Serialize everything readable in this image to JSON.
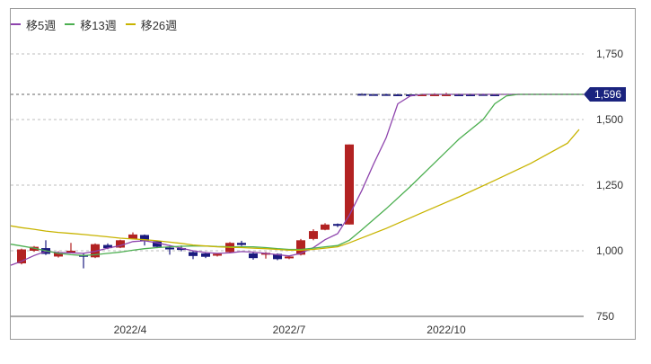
{
  "legend": {
    "items": [
      {
        "label": "移5週",
        "color": "#8e44ad"
      },
      {
        "label": "移13週",
        "color": "#4caf50"
      },
      {
        "label": "移26週",
        "color": "#c8b400"
      }
    ]
  },
  "current_price_badge": {
    "label": "1,596",
    "color": "#1a237e"
  },
  "chart_data": {
    "type": "candlestick",
    "title": "",
    "xlabel": "",
    "ylabel": "",
    "ylim": [
      750,
      1850
    ],
    "grid": true,
    "legend_position": "top-left",
    "y_ticks": [
      {
        "value": 1750,
        "label": "1,750"
      },
      {
        "value": 1500,
        "label": "1,500"
      },
      {
        "value": 1250,
        "label": "1,250"
      },
      {
        "value": 1000,
        "label": "1,000"
      },
      {
        "value": 750,
        "label": "750"
      }
    ],
    "x_ticks": [
      {
        "label": "2022/4",
        "x": 145
      },
      {
        "label": "2022/7",
        "x": 322
      },
      {
        "label": "2022/10",
        "x": 497
      }
    ],
    "current_price": 1596,
    "candles": [
      {
        "x": 24,
        "open": 952,
        "close": 1005,
        "high": 1008,
        "low": 948,
        "up": true
      },
      {
        "x": 38,
        "open": 1000,
        "close": 1015,
        "high": 1018,
        "low": 996,
        "up": true
      },
      {
        "x": 51,
        "open": 1010,
        "close": 988,
        "high": 1040,
        "low": 984,
        "up": false
      },
      {
        "x": 65,
        "open": 978,
        "close": 994,
        "high": 998,
        "low": 974,
        "up": true
      },
      {
        "x": 79,
        "open": 995,
        "close": 1000,
        "high": 1030,
        "low": 992,
        "up": true
      },
      {
        "x": 93,
        "open": 984,
        "close": 981,
        "high": 990,
        "low": 933,
        "up": false
      },
      {
        "x": 106,
        "open": 975,
        "close": 1025,
        "high": 1028,
        "low": 972,
        "up": true
      },
      {
        "x": 120,
        "open": 1022,
        "close": 1010,
        "high": 1028,
        "low": 1006,
        "up": false
      },
      {
        "x": 134,
        "open": 1012,
        "close": 1040,
        "high": 1042,
        "low": 1010,
        "up": true
      },
      {
        "x": 148,
        "open": 1045,
        "close": 1062,
        "high": 1070,
        "low": 1043,
        "up": true
      },
      {
        "x": 161,
        "open": 1060,
        "close": 1038,
        "high": 1062,
        "low": 1020,
        "up": false
      },
      {
        "x": 175,
        "open": 1036,
        "close": 1015,
        "high": 1038,
        "low": 1010,
        "up": false
      },
      {
        "x": 189,
        "open": 1012,
        "close": 1010,
        "high": 1022,
        "low": 985,
        "up": false
      },
      {
        "x": 202,
        "open": 1010,
        "close": 1008,
        "high": 1020,
        "low": 998,
        "up": false
      },
      {
        "x": 215,
        "open": 995,
        "close": 980,
        "high": 998,
        "low": 968,
        "up": false
      },
      {
        "x": 229,
        "open": 990,
        "close": 977,
        "high": 992,
        "low": 972,
        "up": false
      },
      {
        "x": 242,
        "open": 982,
        "close": 988,
        "high": 990,
        "low": 978,
        "up": true
      },
      {
        "x": 256,
        "open": 995,
        "close": 1030,
        "high": 1033,
        "low": 993,
        "up": true
      },
      {
        "x": 269,
        "open": 1030,
        "close": 1022,
        "high": 1038,
        "low": 1018,
        "up": false
      },
      {
        "x": 282,
        "open": 990,
        "close": 972,
        "high": 995,
        "low": 966,
        "up": false
      },
      {
        "x": 296,
        "open": 985,
        "close": 992,
        "high": 995,
        "low": 970,
        "up": true
      },
      {
        "x": 309,
        "open": 988,
        "close": 968,
        "high": 990,
        "low": 964,
        "up": false
      },
      {
        "x": 322,
        "open": 972,
        "close": 978,
        "high": 982,
        "low": 968,
        "up": true
      },
      {
        "x": 335,
        "open": 985,
        "close": 1040,
        "high": 1045,
        "low": 982,
        "up": true
      },
      {
        "x": 349,
        "open": 1045,
        "close": 1075,
        "high": 1082,
        "low": 1040,
        "up": true
      },
      {
        "x": 362,
        "open": 1080,
        "close": 1100,
        "high": 1105,
        "low": 1078,
        "up": true
      },
      {
        "x": 376,
        "open": 1102,
        "close": 1098,
        "high": 1104,
        "low": 1090,
        "up": false
      },
      {
        "x": 389,
        "open": 1100,
        "close": 1405,
        "high": 1405,
        "low": 1100,
        "up": true
      },
      {
        "x": 403,
        "open": 1598,
        "close": 1596,
        "high": 1600,
        "low": 1594,
        "up": false
      },
      {
        "x": 416,
        "open": 1597,
        "close": 1596,
        "high": 1598,
        "low": 1595,
        "up": false
      },
      {
        "x": 430,
        "open": 1597,
        "close": 1596,
        "high": 1598,
        "low": 1595,
        "up": false
      },
      {
        "x": 443,
        "open": 1596,
        "close": 1596,
        "high": 1598,
        "low": 1594,
        "up": false
      },
      {
        "x": 457,
        "open": 1596,
        "close": 1595,
        "high": 1597,
        "low": 1594,
        "up": false
      },
      {
        "x": 470,
        "open": 1595,
        "close": 1596,
        "high": 1597,
        "low": 1593,
        "up": true
      },
      {
        "x": 484,
        "open": 1596,
        "close": 1596,
        "high": 1600,
        "low": 1594,
        "up": true
      },
      {
        "x": 497,
        "open": 1596,
        "close": 1596,
        "high": 1602,
        "low": 1594,
        "up": true
      },
      {
        "x": 511,
        "open": 1596,
        "close": 1596,
        "high": 1598,
        "low": 1595,
        "up": false
      },
      {
        "x": 524,
        "open": 1596,
        "close": 1596,
        "high": 1598,
        "low": 1595,
        "up": false
      },
      {
        "x": 538,
        "open": 1597,
        "close": 1596,
        "high": 1598,
        "low": 1595,
        "up": false
      },
      {
        "x": 551,
        "open": 1596,
        "close": 1596,
        "high": 1597,
        "low": 1595,
        "up": false
      }
    ],
    "series": [
      {
        "name": "移5週",
        "color": "#8e44ad",
        "points": [
          [
            12,
            945
          ],
          [
            24,
            960
          ],
          [
            38,
            982
          ],
          [
            51,
            998
          ],
          [
            65,
            993
          ],
          [
            79,
            992
          ],
          [
            93,
            990
          ],
          [
            106,
            998
          ],
          [
            120,
            1010
          ],
          [
            134,
            1020
          ],
          [
            148,
            1035
          ],
          [
            161,
            1038
          ],
          [
            175,
            1030
          ],
          [
            189,
            1020
          ],
          [
            202,
            1010
          ],
          [
            215,
            1000
          ],
          [
            229,
            993
          ],
          [
            242,
            990
          ],
          [
            256,
            992
          ],
          [
            269,
            997
          ],
          [
            282,
            995
          ],
          [
            296,
            990
          ],
          [
            309,
            985
          ],
          [
            322,
            980
          ],
          [
            335,
            990
          ],
          [
            349,
            1012
          ],
          [
            362,
            1042
          ],
          [
            376,
            1065
          ],
          [
            389,
            1135
          ],
          [
            403,
            1230
          ],
          [
            416,
            1330
          ],
          [
            430,
            1430
          ],
          [
            443,
            1560
          ],
          [
            457,
            1590
          ],
          [
            470,
            1596
          ],
          [
            650,
            1596
          ]
        ]
      },
      {
        "name": "移13週",
        "color": "#4caf50",
        "points": [
          [
            12,
            1025
          ],
          [
            24,
            1018
          ],
          [
            38,
            1010
          ],
          [
            51,
            1000
          ],
          [
            65,
            990
          ],
          [
            79,
            985
          ],
          [
            93,
            982
          ],
          [
            106,
            985
          ],
          [
            120,
            990
          ],
          [
            134,
            995
          ],
          [
            148,
            1002
          ],
          [
            161,
            1008
          ],
          [
            175,
            1012
          ],
          [
            189,
            1015
          ],
          [
            202,
            1017
          ],
          [
            215,
            1018
          ],
          [
            229,
            1018
          ],
          [
            242,
            1016
          ],
          [
            256,
            1015
          ],
          [
            269,
            1015
          ],
          [
            282,
            1015
          ],
          [
            296,
            1012
          ],
          [
            309,
            1008
          ],
          [
            322,
            1005
          ],
          [
            335,
            1005
          ],
          [
            349,
            1010
          ],
          [
            362,
            1015
          ],
          [
            376,
            1020
          ],
          [
            389,
            1040
          ],
          [
            403,
            1080
          ],
          [
            430,
            1160
          ],
          [
            457,
            1245
          ],
          [
            484,
            1335
          ],
          [
            511,
            1425
          ],
          [
            538,
            1500
          ],
          [
            551,
            1560
          ],
          [
            564,
            1590
          ],
          [
            577,
            1596
          ],
          [
            650,
            1596
          ]
        ]
      },
      {
        "name": "移26週",
        "color": "#c8b400",
        "points": [
          [
            12,
            1095
          ],
          [
            24,
            1088
          ],
          [
            38,
            1082
          ],
          [
            51,
            1075
          ],
          [
            65,
            1070
          ],
          [
            79,
            1066
          ],
          [
            93,
            1062
          ],
          [
            106,
            1058
          ],
          [
            120,
            1053
          ],
          [
            134,
            1048
          ],
          [
            148,
            1045
          ],
          [
            161,
            1042
          ],
          [
            175,
            1038
          ],
          [
            189,
            1033
          ],
          [
            202,
            1028
          ],
          [
            215,
            1022
          ],
          [
            229,
            1018
          ],
          [
            242,
            1015
          ],
          [
            256,
            1013
          ],
          [
            269,
            1012
          ],
          [
            282,
            1010
          ],
          [
            296,
            1008
          ],
          [
            309,
            1005
          ],
          [
            322,
            1002
          ],
          [
            335,
            1002
          ],
          [
            349,
            1005
          ],
          [
            362,
            1010
          ],
          [
            376,
            1015
          ],
          [
            389,
            1030
          ],
          [
            430,
            1085
          ],
          [
            470,
            1145
          ],
          [
            511,
            1205
          ],
          [
            551,
            1268
          ],
          [
            591,
            1333
          ],
          [
            632,
            1410
          ],
          [
            645,
            1462
          ]
        ]
      }
    ]
  }
}
